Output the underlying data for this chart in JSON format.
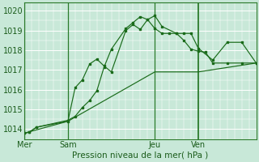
{
  "bg_color": "#c8e8d8",
  "grid_color": "#b0d8c0",
  "grid_color_minor": "#c0e0cc",
  "line_color": "#1a6b1a",
  "xlabel": "Pression niveau de la mer( hPa )",
  "ylim": [
    1013.5,
    1020.4
  ],
  "xlim": [
    0,
    96
  ],
  "xtick_positions": [
    0,
    18,
    54,
    72
  ],
  "xtick_labels": [
    "Mer",
    "Sam",
    "Jeu",
    "Ven"
  ],
  "ytick_positions": [
    1014,
    1015,
    1016,
    1017,
    1018,
    1019,
    1020
  ],
  "ytick_labels": [
    "1014",
    "1015",
    "1016",
    "1017",
    "1018",
    "1019",
    "1020"
  ],
  "line1_x": [
    0,
    2,
    5,
    18,
    21,
    24,
    27,
    30,
    33,
    36,
    42,
    45,
    48,
    51,
    54,
    57,
    63,
    66,
    69,
    72,
    78,
    84,
    90,
    96
  ],
  "line1_y": [
    1013.8,
    1013.85,
    1014.1,
    1014.4,
    1016.1,
    1016.5,
    1017.3,
    1017.55,
    1017.2,
    1016.9,
    1019.0,
    1019.3,
    1019.05,
    1019.55,
    1019.75,
    1019.2,
    1018.85,
    1018.85,
    1018.85,
    1018.1,
    1017.5,
    1018.4,
    1018.4,
    1017.35
  ],
  "line2_x": [
    0,
    2,
    5,
    18,
    21,
    24,
    27,
    30,
    33,
    36,
    42,
    45,
    48,
    51,
    54,
    57,
    60,
    63,
    66,
    69,
    72,
    75,
    78,
    84,
    90,
    96
  ],
  "line2_y": [
    1013.8,
    1013.85,
    1014.1,
    1014.45,
    1014.65,
    1015.1,
    1015.45,
    1015.95,
    1017.15,
    1018.05,
    1019.1,
    1019.4,
    1019.7,
    1019.55,
    1019.1,
    1018.85,
    1018.85,
    1018.85,
    1018.5,
    1018.05,
    1017.95,
    1017.9,
    1017.35,
    1017.35,
    1017.35,
    1017.35
  ],
  "line3_x": [
    0,
    18,
    54,
    72,
    96
  ],
  "line3_y": [
    1013.8,
    1014.4,
    1016.9,
    1016.9,
    1017.35
  ],
  "vline_positions": [
    0,
    18,
    54,
    72
  ],
  "vline_thick": 72
}
